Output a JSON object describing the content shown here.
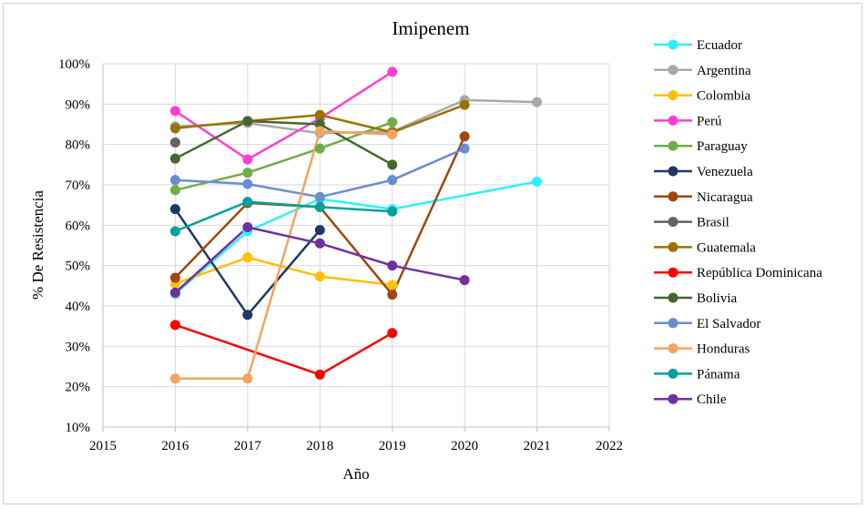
{
  "chart_data": {
    "type": "line",
    "title": "Imipenem",
    "xlabel": "Año",
    "ylabel": "% De Resistencia",
    "xlim": [
      2015,
      2022
    ],
    "ylim": [
      10,
      100
    ],
    "x_ticks": [
      "2015",
      "2016",
      "2017",
      "2018",
      "2019",
      "2020",
      "2021",
      "2022"
    ],
    "y_ticks": [
      "10%",
      "20%",
      "30%",
      "40%",
      "50%",
      "60%",
      "70%",
      "80%",
      "90%",
      "100%"
    ],
    "grid": true,
    "legend_position": "right",
    "series": [
      {
        "name": "Ecuador",
        "color": "#2EEFFF",
        "points": [
          [
            2016,
            43
          ],
          [
            2017,
            58.5
          ],
          [
            2018,
            66.5
          ],
          [
            2019,
            64
          ],
          [
            2021,
            70.8
          ]
        ]
      },
      {
        "name": "Argentina",
        "color": "#A9A9A9",
        "points": [
          [
            2016,
            84.5
          ],
          [
            2017,
            85.3
          ],
          [
            2018,
            82.8
          ],
          [
            2019,
            83.2
          ],
          [
            2020,
            91
          ],
          [
            2021,
            90.5
          ]
        ]
      },
      {
        "name": "Colombia",
        "color": "#FFC000",
        "points": [
          [
            2016,
            45.5
          ],
          [
            2017,
            52
          ],
          [
            2018,
            47.3
          ],
          [
            2019,
            45.2
          ]
        ]
      },
      {
        "name": "Perú",
        "color": "#FF3FCF",
        "points": [
          [
            2016,
            88.3
          ],
          [
            2017,
            76.3
          ],
          [
            2018,
            86.5
          ],
          [
            2019,
            98
          ]
        ]
      },
      {
        "name": "Paraguay",
        "color": "#70AD47",
        "points": [
          [
            2016,
            68.7
          ],
          [
            2017,
            73
          ],
          [
            2018,
            79
          ],
          [
            2019,
            85.5
          ]
        ]
      },
      {
        "name": "Venezuela",
        "color": "#203864",
        "points": [
          [
            2016,
            64
          ],
          [
            2017,
            37.8
          ],
          [
            2018,
            58.8
          ]
        ]
      },
      {
        "name": "Nicaragua",
        "color": "#9E480E",
        "points": [
          [
            2016,
            47
          ],
          [
            2017,
            65.5
          ],
          [
            2018,
            64.5
          ],
          [
            2019,
            42.8
          ],
          [
            2020,
            82
          ]
        ]
      },
      {
        "name": "Brasil",
        "color": "#636363",
        "points": [
          [
            2016,
            80.5
          ]
        ]
      },
      {
        "name": "Guatemala",
        "color": "#997300",
        "points": [
          [
            2016,
            84
          ],
          [
            2017,
            85.8
          ],
          [
            2018,
            87.3
          ],
          [
            2019,
            83
          ],
          [
            2020,
            89.8
          ]
        ]
      },
      {
        "name": "República Dominicana",
        "color": "#FF0000",
        "points": [
          [
            2016,
            35.3
          ],
          [
            2018,
            23
          ],
          [
            2019,
            33.3
          ]
        ]
      },
      {
        "name": "Bolivia",
        "color": "#43682B",
        "points": [
          [
            2016,
            76.5
          ],
          [
            2017,
            85.8
          ],
          [
            2018,
            85
          ],
          [
            2019,
            75
          ]
        ]
      },
      {
        "name": "El Salvador",
        "color": "#698ED0",
        "points": [
          [
            2016,
            71.2
          ],
          [
            2017,
            70.2
          ],
          [
            2018,
            67
          ],
          [
            2019,
            71.2
          ],
          [
            2020,
            79
          ]
        ]
      },
      {
        "name": "Honduras",
        "color": "#F4A460",
        "points": [
          [
            2016,
            22
          ],
          [
            2017,
            22
          ],
          [
            2018,
            83.3
          ],
          [
            2019,
            82.5
          ]
        ]
      },
      {
        "name": "Pánama",
        "color": "#00A19A",
        "points": [
          [
            2016,
            58.5
          ],
          [
            2017,
            65.8
          ],
          [
            2018,
            64.5
          ],
          [
            2019,
            63.4
          ]
        ]
      },
      {
        "name": "Chile",
        "color": "#7030A0",
        "points": [
          [
            2016,
            43.3
          ],
          [
            2017,
            59.5
          ],
          [
            2018,
            55.5
          ],
          [
            2019,
            50
          ],
          [
            2020,
            46.4
          ]
        ]
      }
    ]
  }
}
